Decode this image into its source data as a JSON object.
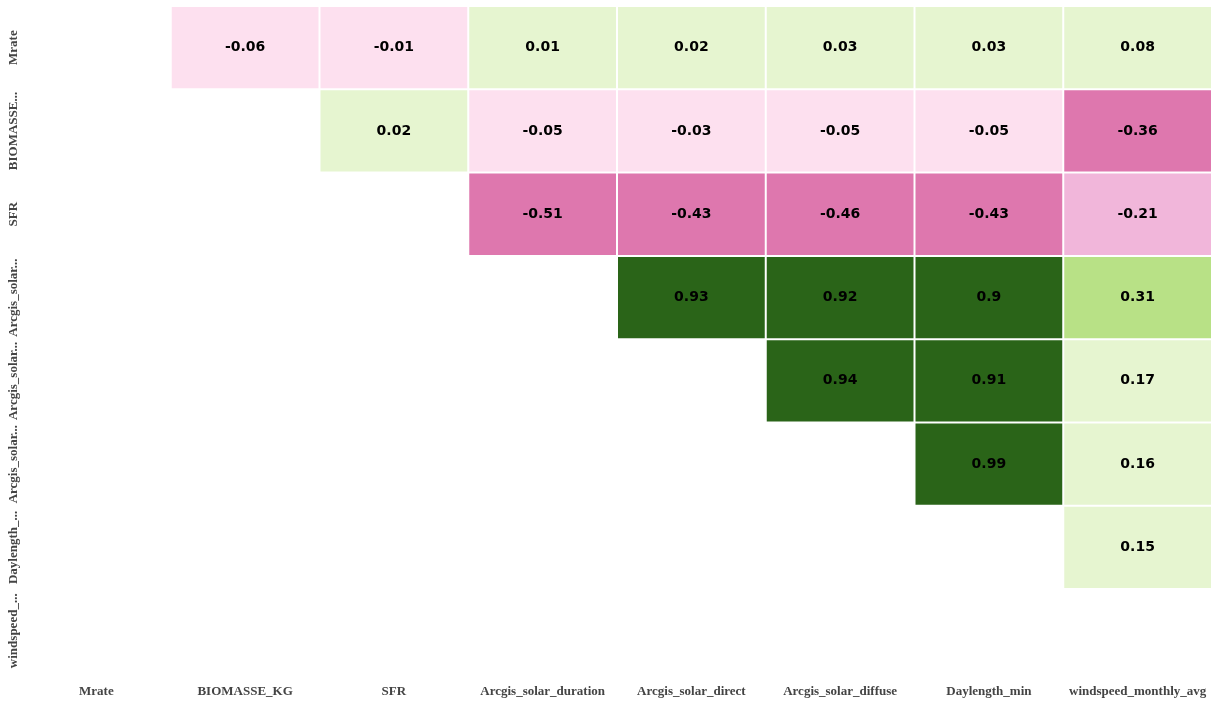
{
  "chart_data": {
    "type": "heatmap",
    "data_labels": true,
    "categories": [
      "Mrate",
      "BIOMASSE_KG",
      "SFR",
      "Arcgis_solar_duration",
      "Arcgis_solar_direct",
      "Arcgis_solar_diffuse",
      "Daylength_min",
      "windspeed_monthly_avg"
    ],
    "y_categories": [
      "Mrate",
      "BIOMASSE...",
      "SFR",
      "Arcgis_solar...",
      "Arcgis_solar...",
      "Arcgis_solar...",
      "Daylength_...",
      "windspeed_..."
    ],
    "cells": [
      [
        null,
        -0.06,
        -0.01,
        0.01,
        0.02,
        0.03,
        0.03,
        0.08
      ],
      [
        null,
        null,
        0.02,
        -0.05,
        -0.03,
        -0.05,
        -0.05,
        -0.36
      ],
      [
        null,
        null,
        null,
        -0.51,
        -0.43,
        -0.46,
        -0.43,
        -0.21
      ],
      [
        null,
        null,
        null,
        null,
        0.93,
        0.92,
        0.9,
        0.31
      ],
      [
        null,
        null,
        null,
        null,
        null,
        0.94,
        0.91,
        0.17
      ],
      [
        null,
        null,
        null,
        null,
        null,
        null,
        0.99,
        0.16
      ],
      [
        null,
        null,
        null,
        null,
        null,
        null,
        null,
        0.15
      ],
      [
        null,
        null,
        null,
        null,
        null,
        null,
        null,
        null
      ]
    ]
  }
}
